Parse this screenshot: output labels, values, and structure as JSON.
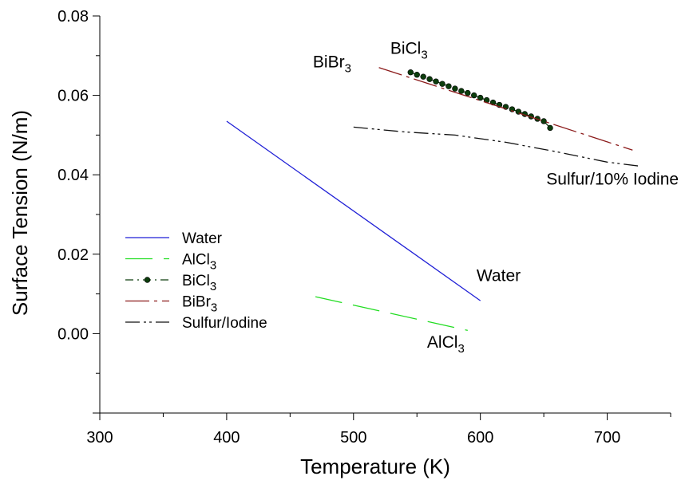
{
  "chart_data": {
    "type": "line",
    "xlabel": "Temperature (K)",
    "ylabel": "Surface Tension (N/m)",
    "xlim": [
      300,
      750
    ],
    "ylim": [
      -0.02,
      0.08
    ],
    "x_ticks": [
      "300",
      "400",
      "500",
      "600",
      "700"
    ],
    "y_ticks": [
      "0.00",
      "0.02",
      "0.04",
      "0.06",
      "0.08"
    ],
    "grid": false,
    "legend_position": "left",
    "series": [
      {
        "name": "Water",
        "color": "#1f1fd6",
        "style": "solid",
        "x": [
          400,
          600
        ],
        "y": [
          0.0535,
          0.0083
        ]
      },
      {
        "name": "AlCl3",
        "color": "#22dd22",
        "style": "long-dash",
        "x": [
          470,
          590
        ],
        "y": [
          0.0093,
          0.0008
        ]
      },
      {
        "name": "BiCl3",
        "color": "#0c3d0c",
        "style": "dash-dot-markers",
        "x": [
          545,
          550,
          555,
          560,
          565,
          570,
          575,
          580,
          585,
          590,
          595,
          600,
          605,
          610,
          615,
          620,
          625,
          630,
          635,
          640,
          645,
          650,
          655
        ],
        "y": [
          0.0658,
          0.0652,
          0.0647,
          0.0641,
          0.0635,
          0.0629,
          0.0623,
          0.0617,
          0.0611,
          0.0606,
          0.06,
          0.0594,
          0.0588,
          0.0582,
          0.0576,
          0.0571,
          0.0565,
          0.0559,
          0.0553,
          0.0547,
          0.0541,
          0.0535,
          0.0518
        ]
      },
      {
        "name": "BiBr3",
        "color": "#8b1a1a",
        "style": "long-dash-dot",
        "x": [
          520,
          720
        ],
        "y": [
          0.067,
          0.0462
        ]
      },
      {
        "name": "Sulfur/Iodine",
        "color": "#111111",
        "style": "dash-dot-dot",
        "x": [
          500,
          540,
          580,
          620,
          660,
          700,
          725
        ],
        "y": [
          0.052,
          0.0508,
          0.05,
          0.0482,
          0.0458,
          0.0432,
          0.0422
        ]
      }
    ],
    "legend": [
      {
        "text": "Water",
        "sub": ""
      },
      {
        "text": "AlCl",
        "sub": "3"
      },
      {
        "text": "BiCl",
        "sub": "3"
      },
      {
        "text": "BiBr",
        "sub": "3"
      },
      {
        "text": "Sulfur/Iodine",
        "sub": ""
      }
    ],
    "annotations": [
      {
        "text": "BiBr",
        "sub": "3",
        "x": 468,
        "y": 0.067
      },
      {
        "text": "BiCl",
        "sub": "3",
        "x": 529,
        "y": 0.0705
      },
      {
        "text": "Sulfur/10% Iodine",
        "sub": "",
        "x": 652,
        "y": 0.0375
      },
      {
        "text": "Water",
        "sub": "",
        "x": 597,
        "y": 0.0132
      },
      {
        "text": "AlCl",
        "sub": "3",
        "x": 558,
        "y": -0.0035
      }
    ]
  }
}
